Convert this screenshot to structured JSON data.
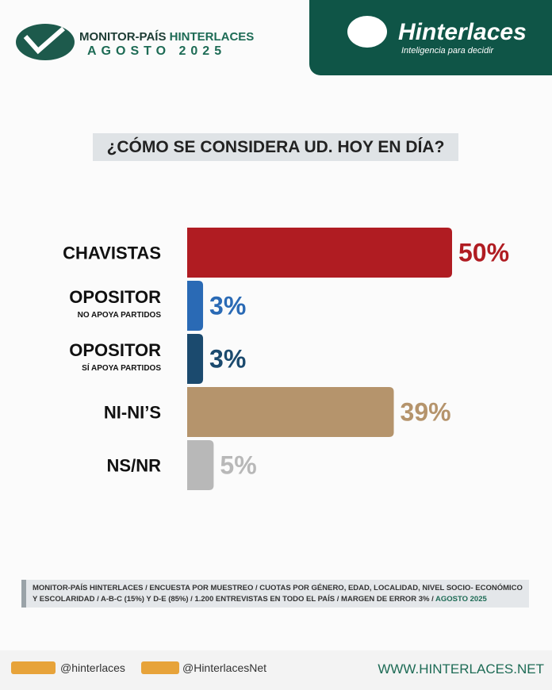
{
  "header": {
    "title_part1": "MONITOR-PAÍS",
    "title_part2": "HINTERLACES",
    "date": "AGOSTO 2025",
    "brand": "Hinterlaces",
    "tagline": "Inteligencia para decidir"
  },
  "chart_data": {
    "type": "bar",
    "orientation": "horizontal",
    "title": "¿CÓMO SE CONSIDERA UD. HOY EN DÍA?",
    "categories": [
      "CHAVISTAS",
      "OPOSITOR",
      "OPOSITOR",
      "NI-NI’S",
      "NS/NR"
    ],
    "category_notes": [
      null,
      "NO APOYA PARTIDOS",
      "SÍ APOYA PARTIDOS",
      null,
      null
    ],
    "values": [
      50,
      3,
      3,
      39,
      5
    ],
    "value_labels": [
      "50%",
      "3%",
      "3%",
      "39%",
      "5%"
    ],
    "colors": [
      "#b01c22",
      "#2a6ab5",
      "#1b4a6e",
      "#b5946c",
      "#b8b8b8"
    ]
  },
  "footer": {
    "note": "MONITOR-PAÍS HINTERLACES / ENCUESTA POR MUESTREO / CUOTAS POR GÉNERO, EDAD, LOCALIDAD,  NIVEL SOCIO- ECONÓMICO Y ESCOLARIDAD / A-B-C (15%) Y D-E (85%) / 1.200 ENTREVISTAS EN TODO EL PAÍS  / MARGEN DE ERROR 3% /",
    "note_date": "AGOSTO 2025",
    "handle": "@hinterlaces",
    "handle2": "@HinterlacesNet",
    "website": "WWW.HINTERLACES.NET"
  }
}
